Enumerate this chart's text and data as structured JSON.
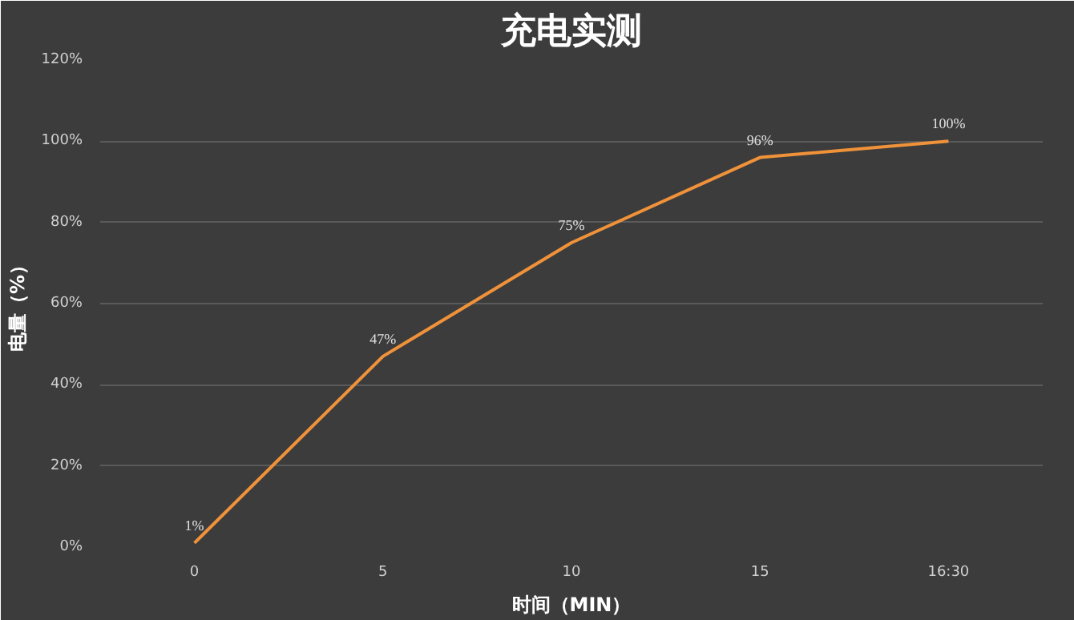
{
  "chart_data": {
    "type": "line",
    "title": "充电实测",
    "xlabel": "时间（MIN）",
    "ylabel": "电量（%）",
    "categories": [
      "0",
      "5",
      "10",
      "15",
      "16:30"
    ],
    "series": [
      {
        "color": "#f0923a",
        "values": [
          1,
          47,
          75,
          96,
          100
        ]
      }
    ],
    "value_labels": [
      "1%",
      "47%",
      "75%",
      "96%",
      "100%"
    ],
    "ylim": [
      0,
      120
    ],
    "yticks": [
      {
        "value": 0,
        "label": "0%"
      },
      {
        "value": 20,
        "label": "20%"
      },
      {
        "value": 40,
        "label": "40%"
      },
      {
        "value": 60,
        "label": "60%"
      },
      {
        "value": 80,
        "label": "80%"
      },
      {
        "value": 100,
        "label": "100%"
      },
      {
        "value": 120,
        "label": "120%"
      }
    ],
    "grid": "y",
    "marker": "none",
    "line_style": "solid"
  }
}
